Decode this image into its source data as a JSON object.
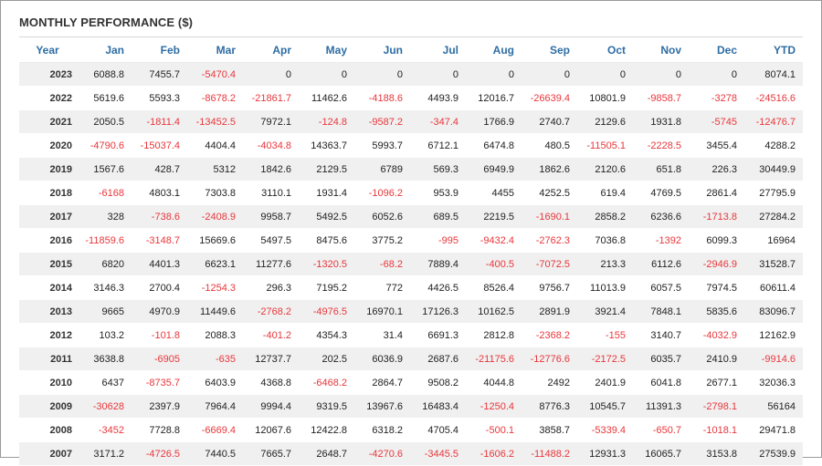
{
  "title": "MONTHLY PERFORMANCE ($)",
  "colors": {
    "header": "#2e6da4",
    "negative": "#e8373c",
    "stripe": "#f0f0f0"
  },
  "headers": [
    "Year",
    "Jan",
    "Feb",
    "Mar",
    "Apr",
    "May",
    "Jun",
    "Jul",
    "Aug",
    "Sep",
    "Oct",
    "Nov",
    "Dec",
    "YTD"
  ],
  "rows": [
    [
      "2023",
      "6088.8",
      "7455.7",
      "-5470.4",
      "0",
      "0",
      "0",
      "0",
      "0",
      "0",
      "0",
      "0",
      "0",
      "8074.1"
    ],
    [
      "2022",
      "5619.6",
      "5593.3",
      "-8678.2",
      "-21861.7",
      "11462.6",
      "-4188.6",
      "4493.9",
      "12016.7",
      "-26639.4",
      "10801.9",
      "-9858.7",
      "-3278",
      "-24516.6"
    ],
    [
      "2021",
      "2050.5",
      "-1811.4",
      "-13452.5",
      "7972.1",
      "-124.8",
      "-9587.2",
      "-347.4",
      "1766.9",
      "2740.7",
      "2129.6",
      "1931.8",
      "-5745",
      "-12476.7"
    ],
    [
      "2020",
      "-4790.6",
      "-15037.4",
      "4404.4",
      "-4034.8",
      "14363.7",
      "5993.7",
      "6712.1",
      "6474.8",
      "480.5",
      "-11505.1",
      "-2228.5",
      "3455.4",
      "4288.2"
    ],
    [
      "2019",
      "1567.6",
      "428.7",
      "5312",
      "1842.6",
      "2129.5",
      "6789",
      "569.3",
      "6949.9",
      "1862.6",
      "2120.6",
      "651.8",
      "226.3",
      "30449.9"
    ],
    [
      "2018",
      "-6168",
      "4803.1",
      "7303.8",
      "3110.1",
      "1931.4",
      "-1096.2",
      "953.9",
      "4455",
      "4252.5",
      "619.4",
      "4769.5",
      "2861.4",
      "27795.9"
    ],
    [
      "2017",
      "328",
      "-738.6",
      "-2408.9",
      "9958.7",
      "5492.5",
      "6052.6",
      "689.5",
      "2219.5",
      "-1690.1",
      "2858.2",
      "6236.6",
      "-1713.8",
      "27284.2"
    ],
    [
      "2016",
      "-11859.6",
      "-3148.7",
      "15669.6",
      "5497.5",
      "8475.6",
      "3775.2",
      "-995",
      "-9432.4",
      "-2762.3",
      "7036.8",
      "-1392",
      "6099.3",
      "16964"
    ],
    [
      "2015",
      "6820",
      "4401.3",
      "6623.1",
      "11277.6",
      "-1320.5",
      "-68.2",
      "7889.4",
      "-400.5",
      "-7072.5",
      "213.3",
      "6112.6",
      "-2946.9",
      "31528.7"
    ],
    [
      "2014",
      "3146.3",
      "2700.4",
      "-1254.3",
      "296.3",
      "7195.2",
      "772",
      "4426.5",
      "8526.4",
      "9756.7",
      "11013.9",
      "6057.5",
      "7974.5",
      "60611.4"
    ],
    [
      "2013",
      "9665",
      "4970.9",
      "11449.6",
      "-2768.2",
      "-4976.5",
      "16970.1",
      "17126.3",
      "10162.5",
      "2891.9",
      "3921.4",
      "7848.1",
      "5835.6",
      "83096.7"
    ],
    [
      "2012",
      "103.2",
      "-101.8",
      "2088.3",
      "-401.2",
      "4354.3",
      "31.4",
      "6691.3",
      "2812.8",
      "-2368.2",
      "-155",
      "3140.7",
      "-4032.9",
      "12162.9"
    ],
    [
      "2011",
      "3638.8",
      "-6905",
      "-635",
      "12737.7",
      "202.5",
      "6036.9",
      "2687.6",
      "-21175.6",
      "-12776.6",
      "-2172.5",
      "6035.7",
      "2410.9",
      "-9914.6"
    ],
    [
      "2010",
      "6437",
      "-8735.7",
      "6403.9",
      "4368.8",
      "-6468.2",
      "2864.7",
      "9508.2",
      "4044.8",
      "2492",
      "2401.9",
      "6041.8",
      "2677.1",
      "32036.3"
    ],
    [
      "2009",
      "-30628",
      "2397.9",
      "7964.4",
      "9994.4",
      "9319.5",
      "13967.6",
      "16483.4",
      "-1250.4",
      "8776.3",
      "10545.7",
      "11391.3",
      "-2798.1",
      "56164"
    ],
    [
      "2008",
      "-3452",
      "7728.8",
      "-6669.4",
      "12067.6",
      "12422.8",
      "6318.2",
      "4705.4",
      "-500.1",
      "3858.7",
      "-5339.4",
      "-650.7",
      "-1018.1",
      "29471.8"
    ],
    [
      "2007",
      "3171.2",
      "-4726.5",
      "7440.5",
      "7665.7",
      "2648.7",
      "-4270.6",
      "-3445.5",
      "-1606.2",
      "-11488.2",
      "12931.3",
      "16065.7",
      "3153.8",
      "27539.9"
    ]
  ]
}
